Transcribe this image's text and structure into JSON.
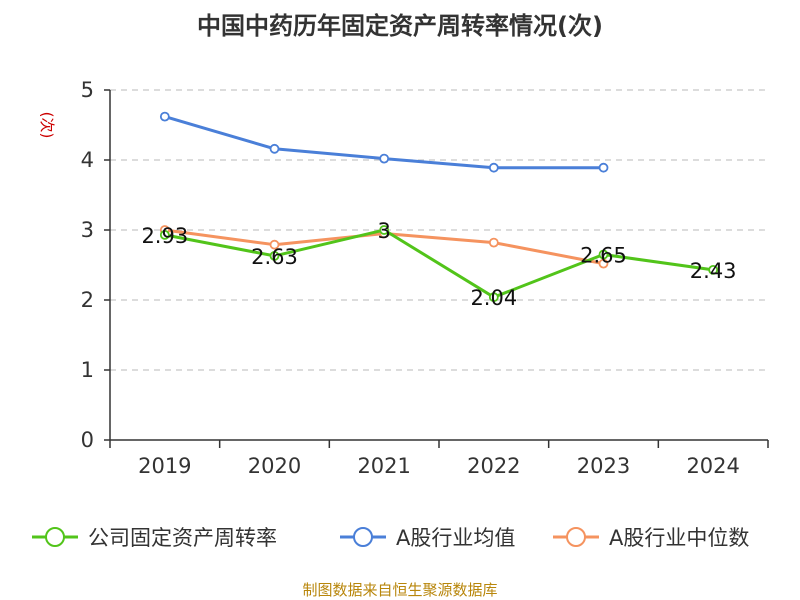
{
  "chart_data": {
    "type": "line",
    "title": "中国中药历年固定资产周转率情况(次)",
    "ylabel": "(次)",
    "categories": [
      "2019",
      "2020",
      "2021",
      "2022",
      "2023",
      "2024"
    ],
    "ylim": [
      0,
      5
    ],
    "yticks": [
      0,
      1,
      2,
      3,
      4,
      5
    ],
    "grid": true,
    "legend_position": "bottom",
    "series": [
      {
        "name": "公司固定资产周转率",
        "color": "#52c41a",
        "values": [
          2.93,
          2.63,
          3,
          2.04,
          2.65,
          2.43
        ],
        "labels": [
          "2.93",
          "2.63",
          "3",
          "2.04",
          "2.65",
          "2.43"
        ]
      },
      {
        "name": "A股行业均值",
        "color": "#4a7fd8",
        "values": [
          4.62,
          4.16,
          4.02,
          3.89,
          3.89,
          null
        ]
      },
      {
        "name": "A股行业中位数",
        "color": "#f5935f",
        "values": [
          3.0,
          2.79,
          2.95,
          2.82,
          2.52,
          null
        ]
      }
    ],
    "ylabel_color": "#cc0000",
    "source": "制图数据来自恒生聚源数据库",
    "source_color": "#b8860b"
  }
}
